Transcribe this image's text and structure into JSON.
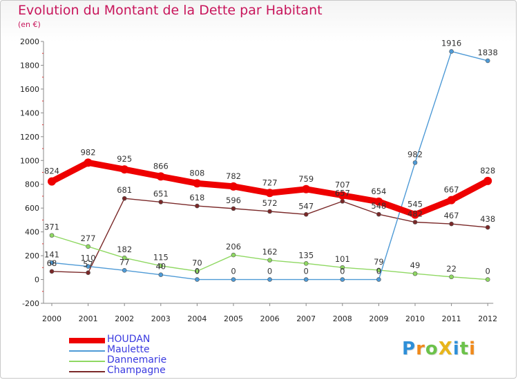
{
  "header": {
    "title": "Evolution du Montant de la Dette par Habitant",
    "subtitle": "(en €)"
  },
  "logo": {
    "text": "ProXiti"
  },
  "colors": {
    "title": "#c8155b",
    "legend_text": "#3a3ae0"
  },
  "chart_data": {
    "type": "line",
    "title": "Evolution du Montant de la Dette par Habitant",
    "subtitle": "(en €)",
    "xlabel": "",
    "ylabel": "",
    "x": [
      "2000",
      "2001",
      "2002",
      "2003",
      "2004",
      "2005",
      "2006",
      "2007",
      "2008",
      "2009",
      "2010",
      "2011",
      "2012"
    ],
    "ylim": [
      -200,
      2000
    ],
    "yticks": [
      -200,
      0,
      200,
      400,
      600,
      800,
      1000,
      1200,
      1400,
      1600,
      1800,
      2000
    ],
    "grid": false,
    "legend_position": "bottom-left",
    "series": [
      {
        "name": "HOUDAN",
        "color": "#ee0000",
        "values": [
          824,
          982,
          925,
          866,
          808,
          782,
          727,
          759,
          707,
          654,
          545,
          667,
          828
        ]
      },
      {
        "name": "Maulette",
        "color": "#4e9ad6",
        "values": [
          141,
          110,
          77,
          40,
          0,
          0,
          0,
          0,
          0,
          0,
          982,
          1916,
          1838
        ]
      },
      {
        "name": "Dannemarie",
        "color": "#8fd862",
        "values": [
          371,
          277,
          182,
          115,
          70,
          206,
          162,
          135,
          101,
          79,
          49,
          22,
          0
        ]
      },
      {
        "name": "Champagne",
        "color": "#7a2828",
        "values": [
          68,
          57,
          681,
          651,
          618,
          596,
          572,
          547,
          657,
          548,
          482,
          467,
          438
        ]
      }
    ]
  }
}
